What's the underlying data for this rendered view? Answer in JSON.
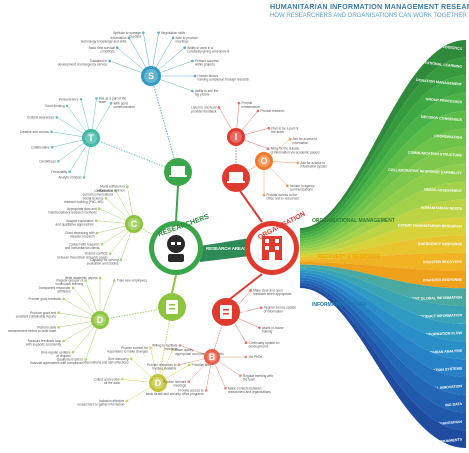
{
  "header": {
    "title": "HUMANITARIAN INFORMATION MANAGEMENT RESEARCH",
    "subtitle": "HOW RESEARCHERS AND ORGANISATIONS CAN WORK TOGETHER"
  },
  "center": {
    "researchers": "RESEARCHERS",
    "organisation": "ORGANISATION",
    "research_areas": "RESEARCH AREAS"
  },
  "hubs": {
    "researchers_environment": "ENVIRONMENT",
    "researchers_needs": "NEEDS",
    "organisation_environment": "ENVIRONMENT",
    "organisation_obligations": "OBLIGATIONS"
  },
  "categories": {
    "organisational": "ORGANISATIONAL MANAGEMENT",
    "recovery": "RECOVERY & RESPONSE",
    "information": "INFORMATION & DATA"
  },
  "colors": {
    "researchers_green": "#3aa64a",
    "organisation_red": "#e03a2f",
    "leaf_green": "#8cc63f",
    "teal": "#3fb8a8",
    "orange": "#f07a2a",
    "blue": "#1f77b4"
  },
  "research_areas": [
    "LOGISTICS",
    "INSTITUTIONAL LEARNING",
    "DONATION MANAGEMENT",
    "GROUP PROCESSES",
    "DECISION CONSENSUS",
    "COORDINATION",
    "COMMUNICATION STRUCTURE",
    "COLLABORATIVE RESPONSE CAPABILITY",
    "NEEDS ASSESSMENT",
    "HUMANITARIAN NEEDS",
    "EXPERT HUMANITARIAN RESEARCH",
    "EMERGENCY RESPONSE",
    "DISASTER RECOVERY",
    "DISASTER RESPONSE",
    "COMMUNITY ENGAGEMENT GLOBAL INFORMATION",
    "PRODUCT INFORMATION",
    "INFORMATION FLOW",
    "HUMANITARIAN ANALYSIS",
    "GLOBAL INFORMATION SYSTEMS",
    "DIGITAL INNOVATION",
    "BIG DATA",
    "DATA SECURITY IN HUMANITARIAN",
    "DATA COLLECTION IN HUMANITARIAN ENVIRONMENTS"
  ],
  "nodes": {
    "S": [
      "Sustained in development of emergency service",
      "Basic field survival conditions",
      "Information technology knowledge and skills",
      "Aptitude to manage big data",
      "Negotiation skills",
      "Able to produce meetings",
      "Ability to work in a constantly-giving environment",
      "Perform success within projects",
      "Human factors training completion through research",
      "Ability to see the big picture"
    ],
    "T": [
      "Analytic mindset",
      "Personality",
      "Candidness",
      "Collaborative",
      "Creative and curious",
      "Cultural awareness",
      "Good thinking",
      "Perseverance",
      "Ask as a part of the team",
      "With good communication"
    ],
    "C": [
      "Capacity for serving evaluation and studies",
      "Assess conflicts between theoretical research needs",
      "Contact with research and humanitarian clients",
      "Good assessing with disaster research",
      "Analytic exploration and qualitative approaches",
      "Appropriate data and interdisciplinary research methods",
      "Social Science research training (PhD, MS)",
      "Limitations of current conversations",
      "Moral sufficient in information science"
    ],
    "D_left": [
      "Quality item diet to financial approaches with compliance",
      "Give regular updates at request",
      "Measure feedback loop with supports community",
      "Perform daily measurement before to build base",
      "Produce good and excellent sustainable reports",
      "Provide good feedback",
      "Transparent responder attributes",
      "Regular grouper of continuous learning",
      "Write academic papers",
      "Train new employees"
    ],
    "D_mid": [
      "Inclusion effective researchers to gather information",
      "Collect and review all the data",
      "Give discovery observations and self-reflections",
      "Provide comfort for responders to make changes",
      "Make quality, appropriate and information needs",
      "Prioritize time"
    ],
    "I_right_top": [
      "Listen to and trust provider feedback",
      "Provide infrastructure",
      "Provide research",
      "Plan to be a part of the team",
      "Allow for the release of information via academic papers"
    ],
    "O": [
      "Aim for access to information",
      "Aim for access to information system",
      "Include in agency communications",
      "Provide access to the office and to resources"
    ],
    "D_org": [
      "Make clear and open feedback when appropriate",
      "Regular source update of information",
      "Assist in-house training",
      "Continually update on developments"
    ],
    "B": [
      "Set PhDs",
      "Regular meeting with the team",
      "Make contacts between researchers and organizations",
      "Provide access to basic health and security office programs",
      "Provide relevant meetings",
      "Provide resources to training available",
      "Willing to facilitate meetings"
    ]
  }
}
